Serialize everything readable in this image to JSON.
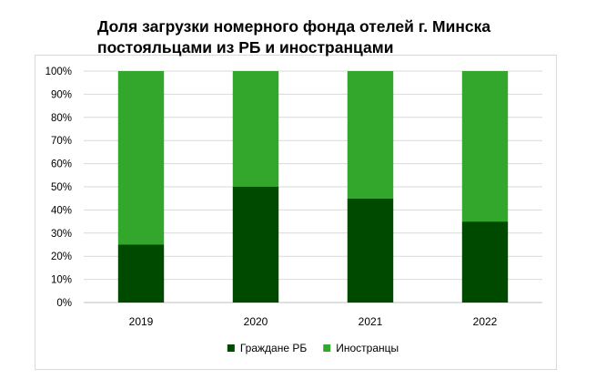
{
  "chart_data": {
    "type": "bar",
    "stacked": true,
    "percent_stacked": true,
    "title": "Доля загрузки номерного фонда отелей г. Минска постояльцами из РБ и иностранцами",
    "title_lines": [
      "Доля загрузки номерного фонда отелей г. Минска",
      "постояльцами из РБ и иностранцами"
    ],
    "categories": [
      "2019",
      "2020",
      "2021",
      "2022"
    ],
    "series": [
      {
        "name": "Граждане РБ",
        "color": "#004a00",
        "values": [
          25,
          50,
          45,
          35
        ]
      },
      {
        "name": "Иностранцы",
        "color": "#33a62c",
        "values": [
          75,
          50,
          55,
          65
        ]
      }
    ],
    "ylim": [
      0,
      100
    ],
    "yticks": [
      "0%",
      "10%",
      "20%",
      "30%",
      "40%",
      "50%",
      "60%",
      "70%",
      "80%",
      "90%",
      "100%"
    ],
    "grid": true,
    "legend_position": "bottom"
  }
}
